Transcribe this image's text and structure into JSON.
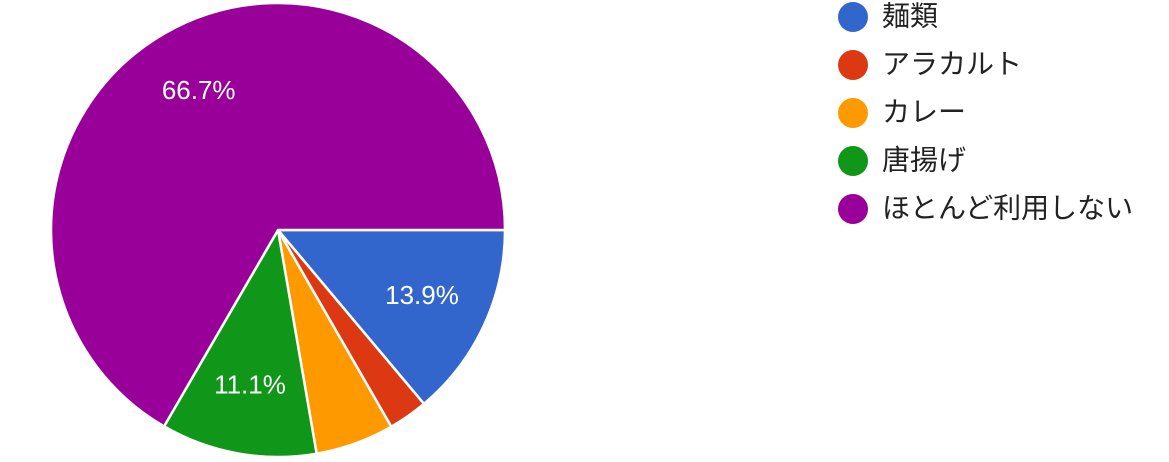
{
  "chart_data": {
    "type": "pie",
    "categories": [
      "麺類",
      "アラカルト",
      "カレー",
      "唐揚げ",
      "ほとんど利用しない"
    ],
    "values": [
      13.9,
      2.8,
      5.6,
      11.1,
      66.7
    ],
    "value_labels": [
      "13.9%",
      null,
      null,
      "11.1%",
      "66.7%"
    ],
    "colors": [
      "#3366cc",
      "#dc3912",
      "#ff9900",
      "#109618",
      "#990099"
    ],
    "legend": "right"
  }
}
